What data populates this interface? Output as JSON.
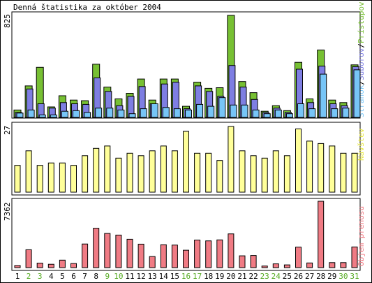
{
  "chart_data": {
    "type": "bar",
    "title": "Denná štatistika za október 2004",
    "categories": [
      "1",
      "2",
      "3",
      "4",
      "5",
      "6",
      "7",
      "8",
      "9",
      "10",
      "11",
      "12",
      "13",
      "14",
      "15",
      "16",
      "17",
      "18",
      "19",
      "20",
      "21",
      "22",
      "23",
      "24",
      "25",
      "26",
      "27",
      "28",
      "29",
      "30",
      "31"
    ],
    "weekend_days": [
      "2",
      "3",
      "9",
      "10",
      "16",
      "17",
      "23",
      "24",
      "30",
      "31"
    ],
    "colors": {
      "weekday_label": "#000000",
      "weekend_label": "#55aa22",
      "pristupov": "#77c033",
      "stranok": "#7e7ee2",
      "suborov": "#77c5f7",
      "navstev": "#ffff99",
      "objem": "#f07b84"
    },
    "panels": [
      {
        "name": "top",
        "max_label": "825",
        "ylim": [
          0,
          825
        ],
        "legend": [
          {
            "text": "Prístupov",
            "color": "#77c033"
          },
          {
            "text": "Súborov",
            "color": "#7e7ee2"
          },
          {
            "text": "Stránok",
            "color": "#77c5f7"
          }
        ],
        "series": [
          {
            "name": "Prístupov",
            "values": [
              60,
              255,
              405,
              85,
              175,
              140,
              135,
              430,
              245,
              150,
              195,
              310,
              140,
              310,
              310,
              90,
              285,
              235,
              240,
              825,
              290,
              200,
              50,
              95,
              55,
              445,
              150,
              545,
              140,
              120,
              425
            ]
          },
          {
            "name": "Súborov",
            "values": [
              40,
              230,
              110,
              75,
              120,
              110,
              105,
              320,
              210,
              95,
              170,
              250,
              110,
              270,
              285,
              70,
              255,
              210,
              170,
              420,
              245,
              145,
              40,
              75,
              40,
              390,
              120,
              415,
              110,
              95,
              410
            ]
          },
          {
            "name": "Stránok",
            "values": [
              35,
              60,
              20,
              20,
              50,
              55,
              40,
              75,
              75,
              60,
              30,
              70,
              110,
              80,
              70,
              60,
              105,
              90,
              160,
              100,
              100,
              60,
              30,
              60,
              30,
              110,
              70,
              350,
              70,
              75,
              385
            ]
          }
        ]
      },
      {
        "name": "middle",
        "max_label": "27",
        "ylim": [
          0,
          27
        ],
        "legend": [
          {
            "text": "Návštev",
            "color": "#ffff99"
          }
        ],
        "series": [
          {
            "name": "Návštev",
            "values": [
              11,
              17,
              11,
              12,
              12,
              11,
              15,
              18,
              19,
              14,
              16,
              15,
              17,
              19,
              17,
              25,
              16,
              16,
              13,
              27,
              17,
              15,
              14,
              17,
              15,
              26,
              21,
              20,
              19,
              16,
              16
            ]
          }
        ]
      },
      {
        "name": "bottom",
        "max_label": "7362",
        "ylim": [
          0,
          7362
        ],
        "legend": [
          {
            "text": "Objem prenosu",
            "color": "#f07b84"
          }
        ],
        "series": [
          {
            "name": "Objem prenosu",
            "values": [
              230,
              1980,
              500,
              370,
              830,
              460,
              2620,
              4370,
              3790,
              3610,
              3150,
              2600,
              1230,
              2540,
              2500,
              1930,
              3060,
              2970,
              3080,
              3740,
              1310,
              1350,
              180,
              420,
              300,
              2280,
              520,
              7362,
              560,
              560,
              2290
            ]
          }
        ]
      }
    ]
  }
}
